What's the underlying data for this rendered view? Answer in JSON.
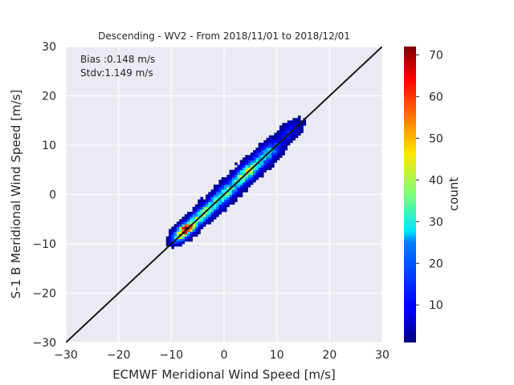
{
  "chart_data": {
    "type": "heatmap",
    "title": "Descending - WV2 - From 2018/11/01 to 2018/12/01",
    "xlabel": "ECMWF Meridional Wind Speed [m/s]",
    "ylabel": "S-1 B Meridional Wind Speed [m/s]",
    "xlim": [
      -30,
      30
    ],
    "ylim": [
      -30,
      30
    ],
    "x_ticks": [
      "−30",
      "−20",
      "−10",
      "0",
      "10",
      "20",
      "30"
    ],
    "y_ticks": [
      "−30",
      "−20",
      "−10",
      "0",
      "10",
      "20",
      "30"
    ],
    "x_tick_values": [
      -30,
      -20,
      -10,
      0,
      10,
      20,
      30
    ],
    "y_tick_values": [
      -30,
      -20,
      -10,
      0,
      10,
      20,
      30
    ],
    "grid": true,
    "reference_line": {
      "slope": 1,
      "intercept": 0,
      "color": "#1a1a1a"
    },
    "annotations": [
      "Bias :0.148 m/s",
      "Stdv:1.149 m/s"
    ],
    "colorbar": {
      "label": "count",
      "min": 1,
      "max": 72,
      "ticks": [
        "10",
        "20",
        "30",
        "40",
        "50",
        "60",
        "70"
      ],
      "tick_values": [
        10,
        20,
        30,
        40,
        50,
        60,
        70
      ],
      "colormap": "jet"
    },
    "density_clusters": [
      {
        "x": -7.5,
        "y": -7.3,
        "peak": 72,
        "sx": 1.6,
        "sy": 0.7
      },
      {
        "x": -4.0,
        "y": -4.0,
        "peak": 35,
        "sx": 2.2,
        "sy": 0.8
      },
      {
        "x": 0.0,
        "y": 0.0,
        "peak": 30,
        "sx": 2.5,
        "sy": 0.9
      },
      {
        "x": 4.5,
        "y": 4.6,
        "peak": 38,
        "sx": 2.4,
        "sy": 0.9
      },
      {
        "x": 8.5,
        "y": 8.6,
        "peak": 22,
        "sx": 2.0,
        "sy": 0.9
      },
      {
        "x": 12.5,
        "y": 12.8,
        "peak": 10,
        "sx": 1.6,
        "sy": 0.9
      }
    ],
    "bin_size": 0.5,
    "colors": {
      "background": "#eaeaf2",
      "grid": "#ffffff",
      "text": "#262626"
    }
  }
}
